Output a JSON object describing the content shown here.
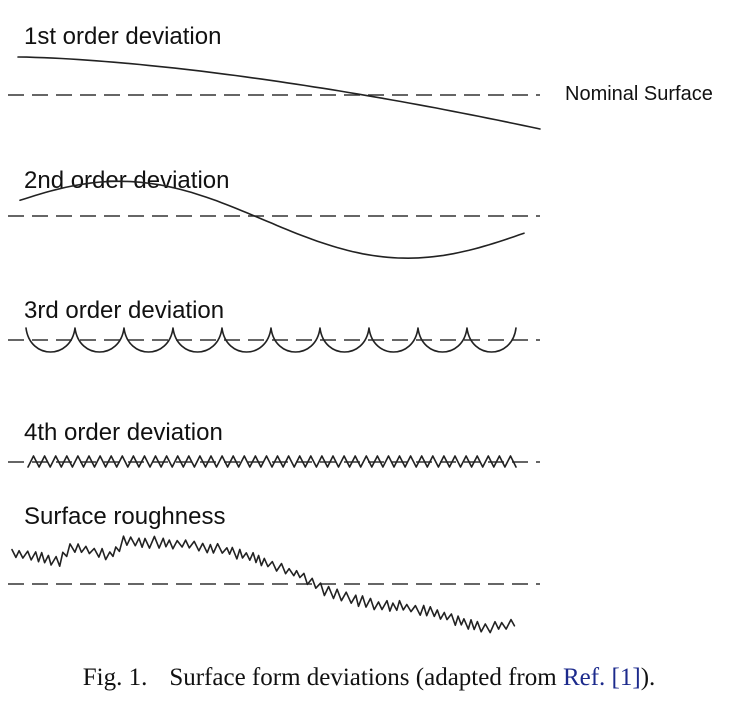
{
  "rows": [
    {
      "label": "1st order deviation"
    },
    {
      "label": "2nd order deviation"
    },
    {
      "label": "3rd order deviation"
    },
    {
      "label": "4th order deviation"
    },
    {
      "label": "Surface roughness"
    }
  ],
  "nominal_label": "Nominal Surface",
  "caption": {
    "number": "Fig. 1.",
    "text_before": "Surface form deviations (adapted from ",
    "ref": "Ref. [1]",
    "text_after": ")."
  },
  "colors": {
    "line": "#222222",
    "link": "#1c2a8c"
  }
}
